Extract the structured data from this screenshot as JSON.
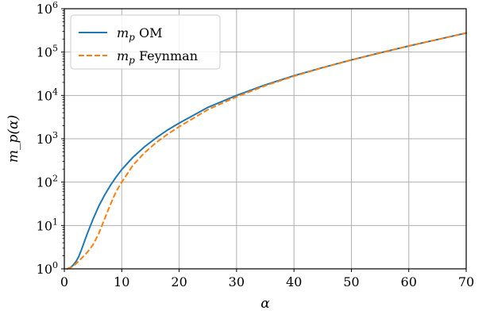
{
  "chart_data": {
    "type": "line",
    "xlabel": "α",
    "ylabel": "m_p(α)",
    "xlim": [
      0,
      70
    ],
    "ylim": [
      1,
      1000000
    ],
    "yscale": "log",
    "grid": true,
    "legend_position": "top-left",
    "x_ticks": [
      0,
      10,
      20,
      30,
      40,
      50,
      60,
      70
    ],
    "y_ticks": [
      {
        "value": 1,
        "base": "10",
        "exp": "0"
      },
      {
        "value": 10,
        "base": "10",
        "exp": "1"
      },
      {
        "value": 100,
        "base": "10",
        "exp": "2"
      },
      {
        "value": 1000,
        "base": "10",
        "exp": "3"
      },
      {
        "value": 10000,
        "base": "10",
        "exp": "4"
      },
      {
        "value": 100000,
        "base": "10",
        "exp": "5"
      },
      {
        "value": 1000000,
        "base": "10",
        "exp": "6"
      }
    ],
    "series": [
      {
        "name": "m_p OM",
        "name_parts": {
          "sym": "m",
          "sub": "p",
          "rest": " OM"
        },
        "color": "#1f77b4",
        "dash": "solid",
        "x": [
          0.5,
          1,
          1.5,
          2,
          2.5,
          3,
          4,
          5,
          6,
          7,
          8,
          9,
          10,
          12,
          14,
          16,
          18,
          20,
          25,
          30,
          35,
          40,
          45,
          50,
          55,
          60,
          65,
          70
        ],
        "y": [
          1.0,
          1.06,
          1.2,
          1.45,
          1.9,
          2.8,
          6.5,
          14,
          28,
          50,
          83,
          130,
          195,
          380,
          660,
          1050,
          1600,
          2300,
          5300,
          10000,
          17500,
          28500,
          44000,
          66000,
          96000,
          138000,
          195000,
          275000
        ]
      },
      {
        "name": "m_p Feynman",
        "name_parts": {
          "sym": "m",
          "sub": "p",
          "rest": " Feynman"
        },
        "color": "#ff7f0e",
        "dash": "dashed",
        "x": [
          0.5,
          1,
          1.5,
          2,
          2.5,
          3,
          4,
          5,
          6,
          7,
          8,
          9,
          10,
          12,
          14,
          16,
          18,
          20,
          25,
          30,
          35,
          40,
          45,
          50,
          55,
          60,
          65,
          70
        ],
        "y": [
          1.0,
          1.05,
          1.15,
          1.3,
          1.5,
          1.75,
          2.4,
          3.6,
          6.5,
          14,
          30,
          60,
          100,
          250,
          480,
          820,
          1280,
          1900,
          4700,
          9300,
          16800,
          27800,
          43500,
          65500,
          95500,
          138000,
          195000,
          275000
        ]
      }
    ]
  }
}
